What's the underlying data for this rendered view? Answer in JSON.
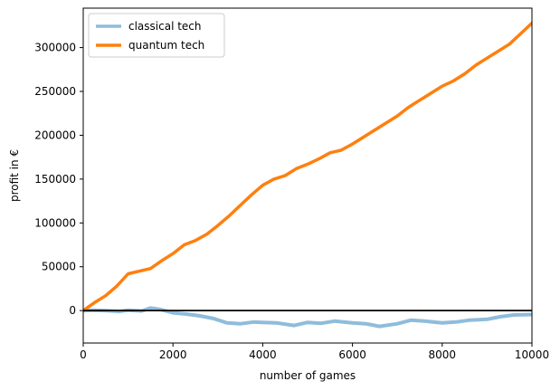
{
  "chart_data": {
    "type": "line",
    "title": "",
    "xlabel": "number of games",
    "ylabel": "profit in €",
    "xlim": [
      0,
      10000
    ],
    "ylim": [
      -37000,
      345000
    ],
    "xticks": [
      0,
      2000,
      4000,
      6000,
      8000,
      10000
    ],
    "xtick_labels": [
      "0",
      "2000",
      "4000",
      "6000",
      "8000",
      "10000"
    ],
    "yticks": [
      0,
      50000,
      100000,
      150000,
      200000,
      250000,
      300000
    ],
    "ytick_labels": [
      "0",
      "50000",
      "100000",
      "150000",
      "200000",
      "250000",
      "300000"
    ],
    "grid": false,
    "legend": "upper-left",
    "reference_line": {
      "y": 0,
      "color": "#000000"
    },
    "series": [
      {
        "name": "classical tech",
        "color": "#8fbcdb",
        "x": [
          0,
          200,
          500,
          800,
          1000,
          1300,
          1500,
          1700,
          2000,
          2300,
          2600,
          2900,
          3200,
          3500,
          3800,
          4000,
          4300,
          4700,
          5000,
          5300,
          5600,
          6000,
          6300,
          6600,
          7000,
          7300,
          7600,
          8000,
          8300,
          8600,
          9000,
          9300,
          9600,
          10000
        ],
        "y": [
          0,
          500,
          0,
          -1000,
          500,
          -500,
          3000,
          1500,
          -2500,
          -4000,
          -6000,
          -9000,
          -14000,
          -15000,
          -13000,
          -13500,
          -14000,
          -17000,
          -13500,
          -14500,
          -12000,
          -14000,
          -15000,
          -18000,
          -15000,
          -11000,
          -12000,
          -14000,
          -13000,
          -11000,
          -10000,
          -7000,
          -5000,
          -4500
        ]
      },
      {
        "name": "quantum tech",
        "color": "#ff7f0e",
        "x": [
          0,
          250,
          500,
          750,
          1000,
          1250,
          1500,
          1750,
          2000,
          2250,
          2500,
          2750,
          3000,
          3250,
          3500,
          3750,
          4000,
          4250,
          4500,
          4750,
          5000,
          5250,
          5500,
          5750,
          6000,
          6250,
          6500,
          6750,
          7000,
          7250,
          7500,
          7750,
          8000,
          8250,
          8500,
          8750,
          9000,
          9250,
          9500,
          9750,
          10000
        ],
        "y": [
          0,
          9000,
          17000,
          28000,
          42000,
          45000,
          48000,
          57000,
          65000,
          75000,
          80000,
          87000,
          97000,
          108000,
          120000,
          132000,
          143000,
          150000,
          154000,
          162000,
          167000,
          173000,
          180000,
          183000,
          190000,
          198000,
          206000,
          214000,
          222000,
          232000,
          240000,
          248000,
          256000,
          262000,
          270000,
          280000,
          288000,
          296000,
          304000,
          316000,
          328000
        ]
      }
    ]
  }
}
